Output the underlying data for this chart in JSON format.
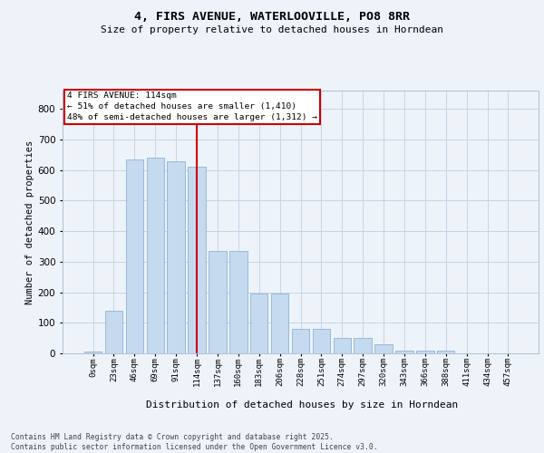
{
  "title_line1": "4, FIRS AVENUE, WATERLOOVILLE, PO8 8RR",
  "title_line2": "Size of property relative to detached houses in Horndean",
  "xlabel": "Distribution of detached houses by size in Horndean",
  "ylabel": "Number of detached properties",
  "bar_color": "#c5d9ef",
  "bar_edge_color": "#89b4d9",
  "vline_color": "#cc0000",
  "annotation_title": "4 FIRS AVENUE: 114sqm",
  "annotation_line2": "← 51% of detached houses are smaller (1,410)",
  "annotation_line3": "48% of semi-detached houses are larger (1,312) →",
  "background_color": "#eef3fa",
  "categories": [
    "0sqm",
    "23sqm",
    "46sqm",
    "69sqm",
    "91sqm",
    "114sqm",
    "137sqm",
    "160sqm",
    "183sqm",
    "206sqm",
    "228sqm",
    "251sqm",
    "274sqm",
    "297sqm",
    "320sqm",
    "343sqm",
    "366sqm",
    "388sqm",
    "411sqm",
    "434sqm",
    "457sqm"
  ],
  "bar_heights": [
    5,
    140,
    635,
    640,
    630,
    610,
    335,
    335,
    195,
    195,
    80,
    80,
    50,
    50,
    30,
    10,
    10,
    10,
    0,
    0,
    0
  ],
  "ylim": [
    0,
    860
  ],
  "yticks": [
    0,
    100,
    200,
    300,
    400,
    500,
    600,
    700,
    800
  ],
  "footer_line1": "Contains HM Land Registry data © Crown copyright and database right 2025.",
  "footer_line2": "Contains public sector information licensed under the Open Government Licence v3.0."
}
